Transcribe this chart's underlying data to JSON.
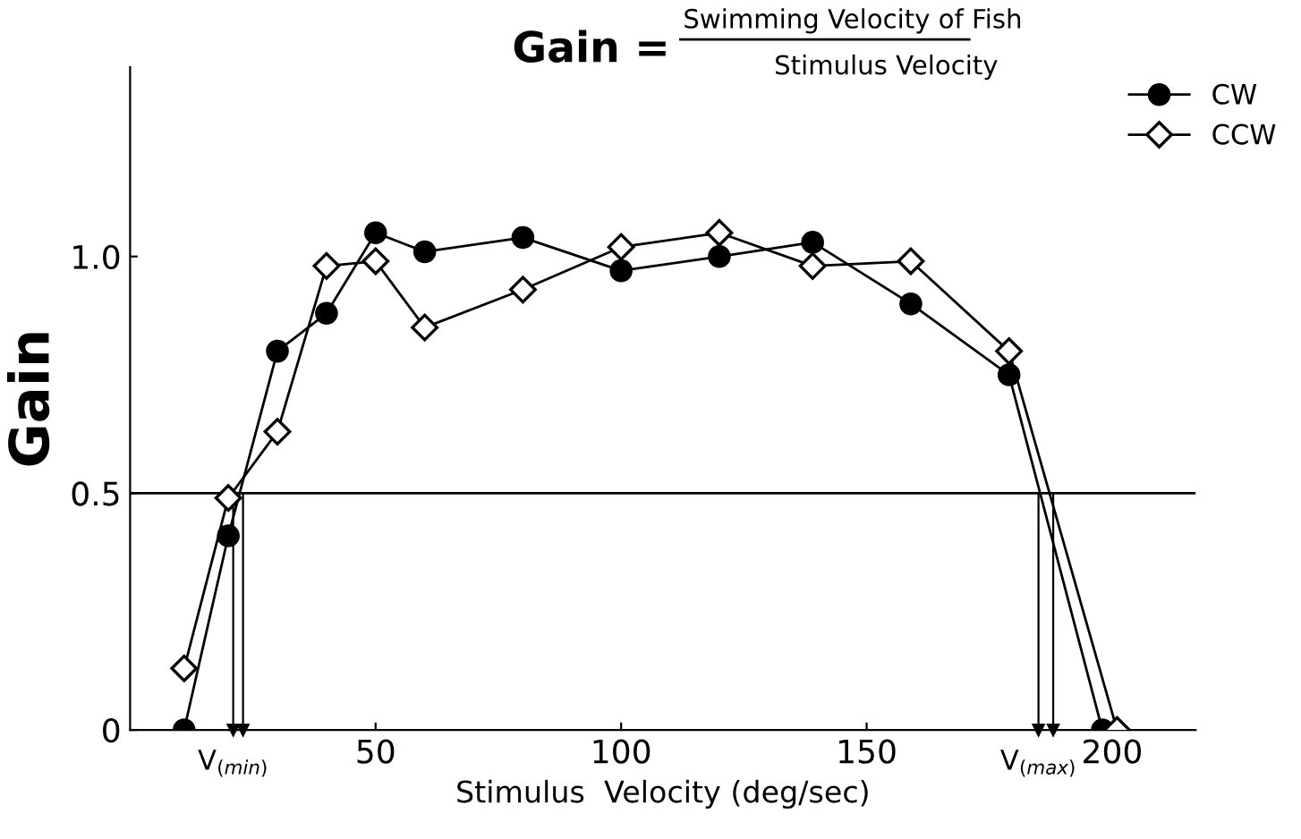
{
  "chart_data": {
    "type": "line",
    "title": "Gain =",
    "annotations": [
      "Swimming Velocity of Fish",
      "Stimulus Velocity"
    ],
    "xlabel": "Stimulus  Velocity (deg/sec)",
    "ylabel": "Gain",
    "xlim": [
      0,
      217
    ],
    "ylim": [
      0,
      1.4
    ],
    "xticks": [
      50,
      100,
      150,
      200
    ],
    "yticks": [
      0,
      0.5,
      {
        "value": 1.0,
        "label": "1.0"
      }
    ],
    "grid": false,
    "legend": "top right",
    "line_style": "solid",
    "series": [
      {
        "name": "CW",
        "color": "#000000",
        "marker": "circle",
        "x": [
          11,
          20,
          30,
          40,
          50,
          60,
          80,
          100,
          120,
          139,
          159,
          179,
          198
        ],
        "values": [
          0,
          0.41,
          0.8,
          0.88,
          1.05,
          1.01,
          1.04,
          0.97,
          1.0,
          1.03,
          0.9,
          0.75,
          0
        ]
      },
      {
        "name": "CCW",
        "color": "#000000",
        "marker": "diamond",
        "x": [
          11,
          20,
          30,
          40,
          50,
          60,
          80,
          100,
          120,
          139,
          159,
          179,
          201
        ],
        "values": [
          0.13,
          0.49,
          0.63,
          0.98,
          0.99,
          0.85,
          0.93,
          1.02,
          1.05,
          0.98,
          0.99,
          0.8,
          0
        ]
      }
    ],
    "ref_lines": [
      {
        "axis": "y",
        "value": 0.5
      },
      {
        "axis": "x",
        "value": 21,
        "label": "V$_{(min)}$"
      },
      {
        "axis": "x",
        "value": 23
      },
      {
        "axis": "x",
        "value": 185,
        "label": "V$_{(max)}$"
      },
      {
        "axis": "x",
        "value": 188
      }
    ]
  }
}
